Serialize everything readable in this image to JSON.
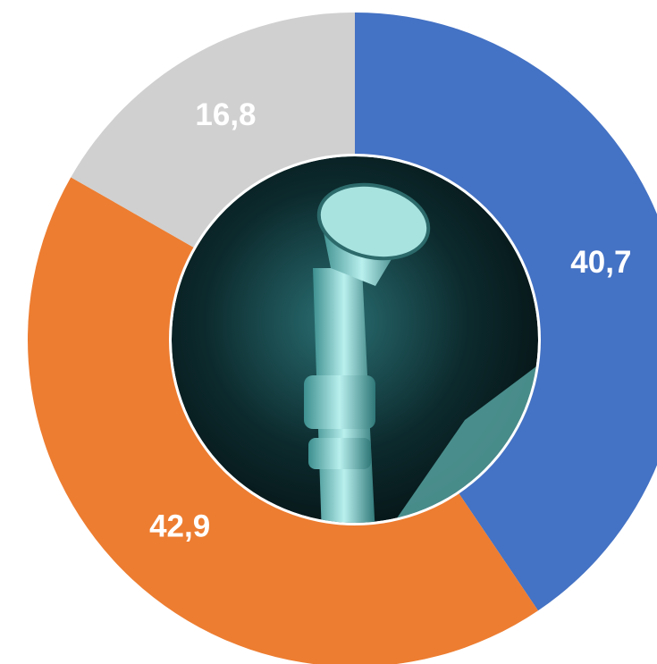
{
  "chart_data": {
    "type": "donut",
    "values": [
      40.7,
      42.9,
      16.8
    ],
    "value_labels": [
      "40,7",
      "42,9",
      "16,8"
    ],
    "colors": [
      "#4472c4",
      "#ed7d31",
      "#d0d0d0"
    ]
  }
}
